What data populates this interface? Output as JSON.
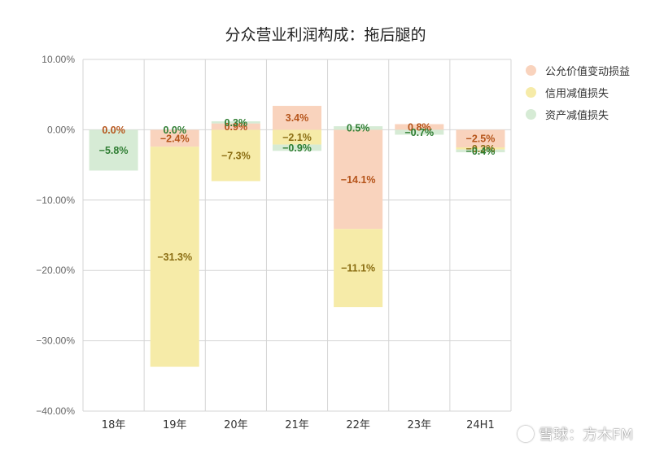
{
  "chart_data": {
    "type": "bar",
    "stacked": true,
    "title": "分众营业利润构成：拖后腿的",
    "categories": [
      "18年",
      "19年",
      "20年",
      "21年",
      "22年",
      "23年",
      "24H1"
    ],
    "ylim": [
      -40,
      10
    ],
    "yticks": [
      10,
      0,
      -10,
      -20,
      -30,
      -40
    ],
    "ytick_labels": [
      "10.00%",
      "0.00%",
      "−10.00%",
      "−20.00%",
      "−30.00%",
      "−40.00%"
    ],
    "grid": true,
    "legend_position": "right",
    "series": [
      {
        "name": "公允价值变动损益",
        "color": "#f9d3bd",
        "label_color": "#b5541a",
        "values": [
          0.0,
          -2.4,
          0.9,
          3.4,
          -14.1,
          0.8,
          -2.5
        ],
        "labels": [
          "0.0%",
          "−2.4%",
          "0.9%",
          "3.4%",
          "−14.1%",
          "0.8%",
          "−2.5%"
        ]
      },
      {
        "name": "信用减值损失",
        "color": "#f6eba8",
        "label_color": "#8a6d12",
        "values": [
          0.0,
          -31.3,
          -7.3,
          -2.1,
          -11.1,
          0.0,
          -0.3
        ],
        "labels": [
          "",
          "−31.3%",
          "−7.3%",
          "−2.1%",
          "−11.1%",
          "",
          "−0.3%"
        ]
      },
      {
        "name": "资产减值损失",
        "color": "#d6ebd5",
        "label_color": "#2e7d32",
        "values": [
          -5.8,
          0.0,
          0.3,
          -0.9,
          0.5,
          -0.7,
          -0.4
        ],
        "labels": [
          "−5.8%",
          "0.0%",
          "0.3%",
          "−0.9%",
          "0.5%",
          "−0.7%",
          "−0.4%"
        ]
      }
    ]
  },
  "watermark": {
    "text": "雪球：方木FM"
  }
}
